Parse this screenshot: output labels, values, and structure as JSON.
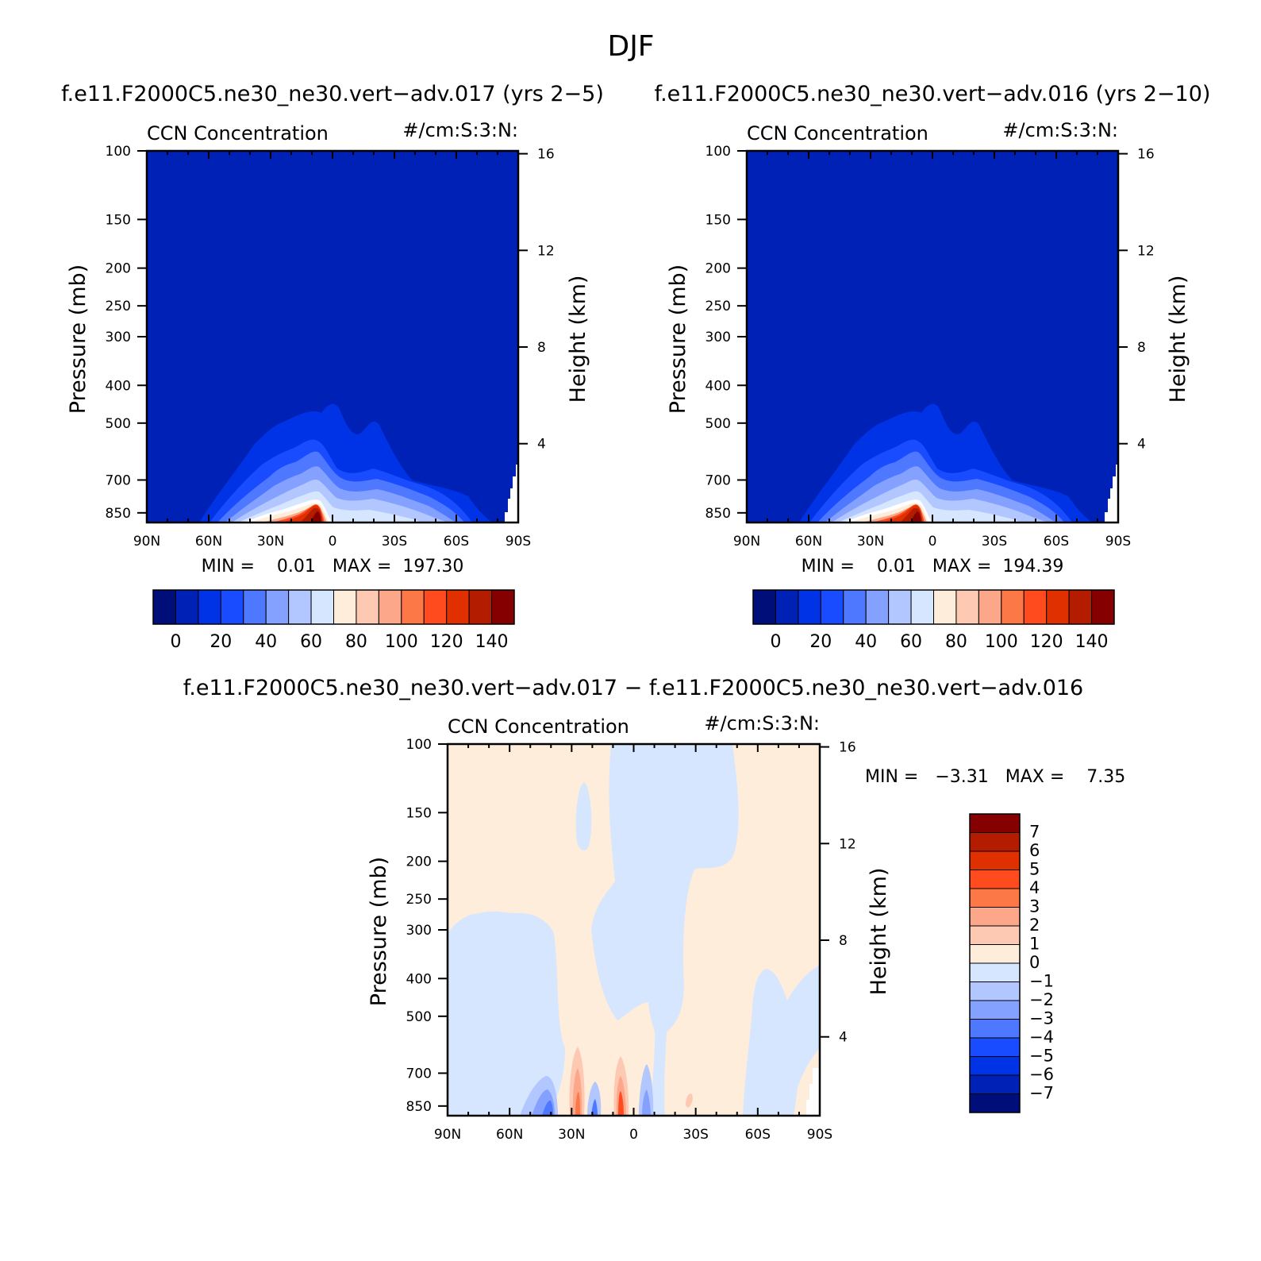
{
  "figure": {
    "title": "DJF"
  },
  "chart_data": [
    {
      "type": "heatmap",
      "id": "panel-017",
      "case_title": "f.e11.F2000C5.ne30_ne30.vert−adv.017 (yrs 2−5)",
      "left_label": "CCN Concentration",
      "right_label": "#/cm:S:3:N:",
      "ylabel": "Pressure (mb)",
      "ylabel_right": "Height (km)",
      "x_ticks": [
        "90N",
        "60N",
        "30N",
        "0",
        "30S",
        "60S",
        "90S"
      ],
      "y_ticks": [
        "100",
        "150",
        "200",
        "250",
        "300",
        "400",
        "500",
        "700",
        "850"
      ],
      "y_ticks_right": [
        "16",
        "12",
        "8",
        "4"
      ],
      "min_text": "MIN =    0.01   MAX =  197.30",
      "min": 0.01,
      "max": 197.3,
      "colorbar_labels": [
        "0",
        "20",
        "40",
        "60",
        "80",
        "100",
        "120",
        "140"
      ],
      "levels": [
        0,
        10,
        20,
        30,
        40,
        50,
        60,
        70,
        80,
        90,
        100,
        110,
        120,
        130,
        140
      ],
      "colors": [
        "#000e79",
        "#0021b5",
        "#0033e5",
        "#1a4cff",
        "#4e78ff",
        "#84a1ff",
        "#b2c7ff",
        "#d6e6ff",
        "#ffeddc",
        "#fec9b2",
        "#fca68a",
        "#fc7847",
        "#ff4b1e",
        "#e13000",
        "#b41c00",
        "#850000"
      ]
    },
    {
      "type": "heatmap",
      "id": "panel-016",
      "case_title": "f.e11.F2000C5.ne30_ne30.vert−adv.016 (yrs 2−10)",
      "left_label": "CCN Concentration",
      "right_label": "#/cm:S:3:N:",
      "ylabel": "Pressure (mb)",
      "ylabel_right": "Height (km)",
      "x_ticks": [
        "90N",
        "60N",
        "30N",
        "0",
        "30S",
        "60S",
        "90S"
      ],
      "y_ticks": [
        "100",
        "150",
        "200",
        "250",
        "300",
        "400",
        "500",
        "700",
        "850"
      ],
      "y_ticks_right": [
        "16",
        "12",
        "8",
        "4"
      ],
      "min_text": "MIN =    0.01   MAX =  194.39",
      "min": 0.01,
      "max": 194.39,
      "colorbar_labels": [
        "0",
        "20",
        "40",
        "60",
        "80",
        "100",
        "120",
        "140"
      ],
      "levels": [
        0,
        10,
        20,
        30,
        40,
        50,
        60,
        70,
        80,
        90,
        100,
        110,
        120,
        130,
        140
      ],
      "colors": [
        "#000e79",
        "#0021b5",
        "#0033e5",
        "#1a4cff",
        "#4e78ff",
        "#84a1ff",
        "#b2c7ff",
        "#d6e6ff",
        "#ffeddc",
        "#fec9b2",
        "#fca68a",
        "#fc7847",
        "#ff4b1e",
        "#e13000",
        "#b41c00",
        "#850000"
      ]
    },
    {
      "type": "heatmap",
      "id": "panel-diff",
      "case_title": "f.e11.F2000C5.ne30_ne30.vert−adv.017 − f.e11.F2000C5.ne30_ne30.vert−adv.016",
      "left_label": "CCN Concentration",
      "right_label": "#/cm:S:3:N:",
      "ylabel": "Pressure (mb)",
      "ylabel_right": "Height (km)",
      "x_ticks": [
        "90N",
        "60N",
        "30N",
        "0",
        "30S",
        "60S",
        "90S"
      ],
      "y_ticks": [
        "100",
        "150",
        "200",
        "250",
        "300",
        "400",
        "500",
        "700",
        "850"
      ],
      "y_ticks_right": [
        "16",
        "12",
        "8",
        "4"
      ],
      "min_text": "MIN =   −3.31   MAX =    7.35",
      "min": -3.31,
      "max": 7.35,
      "colorbar_labels": [
        "7",
        "6",
        "5",
        "4",
        "3",
        "2",
        "1",
        "0",
        "−1",
        "−2",
        "−3",
        "−4",
        "−5",
        "−6",
        "−7"
      ],
      "colors": [
        "#850000",
        "#b41c00",
        "#e13000",
        "#ff4b1e",
        "#fc7847",
        "#fca68a",
        "#fec9b2",
        "#ffeddc",
        "#d6e6ff",
        "#b2c7ff",
        "#84a1ff",
        "#4e78ff",
        "#1a4cff",
        "#0033e5",
        "#0021b5",
        "#000e79"
      ]
    }
  ]
}
